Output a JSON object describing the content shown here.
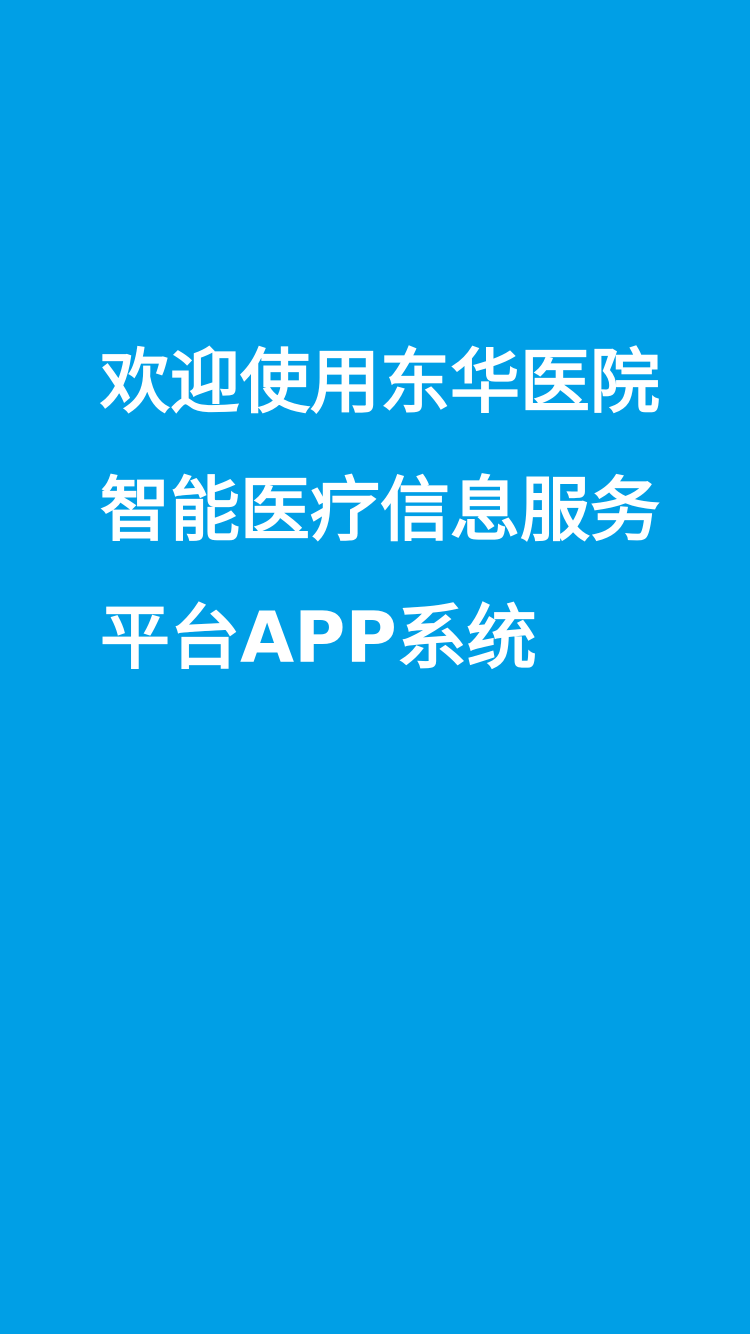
{
  "splash": {
    "background_color": "#009FE6",
    "text_color": "#FFFFFF",
    "welcome_lines": [
      "欢迎使用东华医院",
      "智能医疗信息服务",
      "平台APP系统"
    ]
  }
}
